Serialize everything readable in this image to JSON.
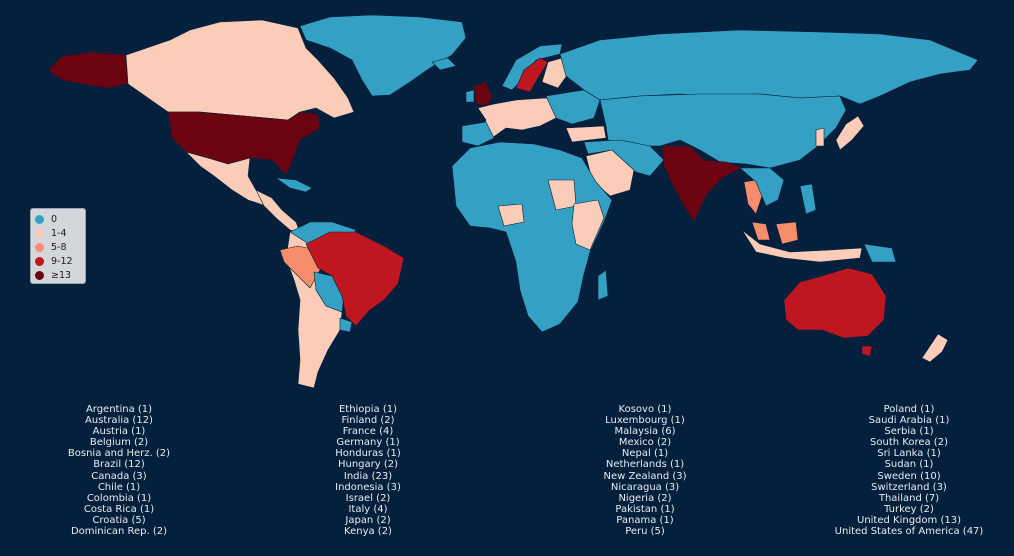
{
  "legend": {
    "items": [
      {
        "label": "0",
        "color": "#34a0c4"
      },
      {
        "label": "1-4",
        "color": "#fbcdb8"
      },
      {
        "label": "5-8",
        "color": "#f88d6c"
      },
      {
        "label": "9-12",
        "color": "#bf1720"
      },
      {
        "label": "≥13",
        "color": "#6b0410"
      }
    ]
  },
  "countries": {
    "col1": [
      "Argentina (1)",
      "Australia (12)",
      "Austria (1)",
      "Belgium (2)",
      "Bosnia and Herz. (2)",
      "Brazil (12)",
      "Canada (3)",
      "Chile (1)",
      "Colombia (1)",
      "Costa Rica (1)",
      "Croatia (5)",
      "Dominican Rep. (2)"
    ],
    "col2": [
      "Ethiopia (1)",
      "Finland (2)",
      "France (4)",
      "Germany (1)",
      "Honduras (1)",
      "Hungary (2)",
      "India (23)",
      "Indonesia (3)",
      "Israel (2)",
      "Italy (4)",
      "Japan (2)",
      "Kenya (2)"
    ],
    "col3": [
      "Kosovo (1)",
      "Luxembourg (1)",
      "Malaysia (6)",
      "Mexico (2)",
      "Nepal (1)",
      "Netherlands (1)",
      "New Zealand (3)",
      "Nicaragua (3)",
      "Nigeria (2)",
      "Pakistan (1)",
      "Panama (1)",
      "Peru (5)"
    ],
    "col4": [
      "Poland (1)",
      "Saudi Arabia (1)",
      "Serbia (1)",
      "South Korea (2)",
      "Sri Lanka (1)",
      "Sudan (1)",
      "Sweden (10)",
      "Switzerland (3)",
      "Thailand (7)",
      "Turkey (2)",
      "United Kingdom (13)",
      "United States of America (47)"
    ]
  },
  "colors": {
    "background": "#04203c",
    "zero": "#34a0c4",
    "low": "#fbcdb8",
    "mid": "#f88d6c",
    "high": "#bf1720",
    "top": "#6b0410"
  }
}
